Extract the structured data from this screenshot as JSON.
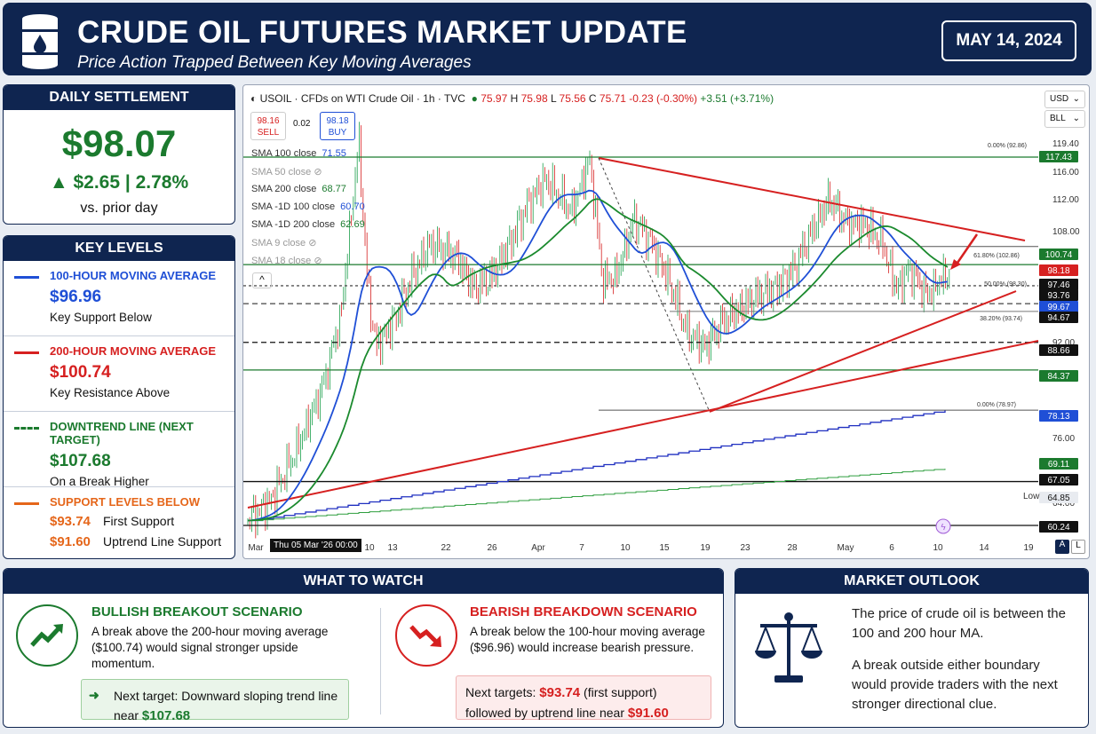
{
  "header": {
    "title": "CRUDE OIL FUTURES MARKET UPDATE",
    "subtitle": "Price Action Trapped Between Key Moving Averages",
    "date": "MAY 14, 2024"
  },
  "settlement": {
    "heading": "DAILY SETTLEMENT",
    "price": "$98.07",
    "change": "▲ $2.65  |  2.78%",
    "note": "vs. prior day"
  },
  "key_levels": {
    "heading": "KEY LEVELS",
    "ma100": {
      "title": "100-HOUR MOVING AVERAGE",
      "value": "$96.96",
      "desc": "Key Support Below",
      "color": "#1f4fd6"
    },
    "ma200": {
      "title": "200-HOUR MOVING AVERAGE",
      "value": "$100.74",
      "desc": "Key Resistance Above",
      "color": "#d62020"
    },
    "downtrend": {
      "title": "DOWNTREND LINE (NEXT TARGET)",
      "value": "$107.68",
      "desc": "On a Break Higher",
      "color": "#1b7a2e"
    },
    "support": {
      "title": "SUPPORT LEVELS BELOW",
      "color": "#e5661a",
      "items": [
        {
          "value": "$93.74",
          "label": "First Support"
        },
        {
          "value": "$91.60",
          "label": "Uptrend Line Support"
        }
      ]
    }
  },
  "chart": {
    "symbol_line": "USOIL · CFDs on WTI Crude Oil · 1h · TVC",
    "ohlc": {
      "o": "75.97",
      "h": "75.98",
      "l": "75.56",
      "c": "75.71",
      "chg": "-0.23 (-0.30%)",
      "extra": "+3.51 (+3.71%)"
    },
    "sell": {
      "price": "98.16",
      "label": "SELL"
    },
    "spread": "0.02",
    "buy": {
      "price": "98.18",
      "label": "BUY"
    },
    "indicators": [
      {
        "name": "SMA 100 close",
        "value": "71.55",
        "color": "#1f4fd6",
        "dim": false
      },
      {
        "name": "SMA 50 close",
        "value": "",
        "color": "",
        "dim": true
      },
      {
        "name": "SMA 200 close",
        "value": "68.77",
        "color": "#1b7a2e",
        "dim": false
      },
      {
        "name": "SMA -1D 100 close",
        "value": "60.70",
        "color": "#1f4fd6",
        "dim": false
      },
      {
        "name": "SMA -1D 200 close",
        "value": "62.69",
        "color": "#1b7a2e",
        "dim": false
      },
      {
        "name": "SMA 9 close",
        "value": "",
        "color": "",
        "dim": true
      },
      {
        "name": "SMA 18 close",
        "value": "",
        "color": "",
        "dim": true
      }
    ],
    "currency": "USD",
    "unit": "BLL",
    "collapse_icon": "^",
    "crosshair_date": "Thu 05 Mar '26  00:00",
    "low_label": "Low",
    "x_ticks": [
      "Mar",
      "10",
      "13",
      "22",
      "26",
      "Apr",
      "7",
      "10",
      "15",
      "19",
      "23",
      "28",
      "May",
      "6",
      "10",
      "14",
      "19"
    ],
    "y_ticks": [
      "119.40",
      "116.00",
      "112.00",
      "108.00",
      "92.00",
      "76.00",
      "64.00"
    ],
    "fib_labels": [
      "0.00% (92.86)",
      "61.80% (102.86)",
      "50.00% (98.30)",
      "38.20% (93.74)",
      "0.00% (78.97)"
    ],
    "price_tags": [
      {
        "text": "117.43",
        "bg": "#1b7a2e",
        "fg": "#ffffff"
      },
      {
        "text": "100.74",
        "bg": "#1b7a2e",
        "fg": "#ffffff"
      },
      {
        "text": "98.18",
        "bg": "#d62020",
        "fg": "#ffffff"
      },
      {
        "text": "97.46",
        "bg": "#111111",
        "fg": "#ffffff"
      },
      {
        "text": "93.76",
        "bg": "#111111",
        "fg": "#ffffff"
      },
      {
        "text": "99.67",
        "bg": "#1f4fd6",
        "fg": "#ffffff"
      },
      {
        "text": "94.67",
        "bg": "#111111",
        "fg": "#ffffff"
      },
      {
        "text": "88.66",
        "bg": "#111111",
        "fg": "#ffffff"
      },
      {
        "text": "84.37",
        "bg": "#1b7a2e",
        "fg": "#ffffff"
      },
      {
        "text": "78.13",
        "bg": "#1f4fd6",
        "fg": "#ffffff"
      },
      {
        "text": "69.11",
        "bg": "#1b7a2e",
        "fg": "#ffffff"
      },
      {
        "text": "67.05",
        "bg": "#111111",
        "fg": "#ffffff"
      },
      {
        "text": "64.85",
        "bg": "#e8ebf0",
        "fg": "#111111"
      },
      {
        "text": "60.24",
        "bg": "#111111",
        "fg": "#ffffff"
      }
    ],
    "log_btn": "A",
    "auto_btn": "L"
  },
  "what_to_watch": {
    "heading": "WHAT TO WATCH",
    "bullish": {
      "title": "BULLISH BREAKOUT SCENARIO",
      "text": "A break above the 200-hour moving average ($100.74) would signal stronger upside momentum.",
      "note_prefix": "Next target: Downward sloping trend line near ",
      "note_value": "$107.68"
    },
    "bearish": {
      "title": "BEARISH BREAKDOWN SCENARIO",
      "text": "A break below the 100-hour moving average ($96.96) would increase bearish pressure.",
      "note_prefix": "Next targets: ",
      "note_value1": "$93.74",
      "note_mid": " (first support) followed by uptrend line near ",
      "note_value2": "$91.60"
    }
  },
  "outlook": {
    "heading": "MARKET OUTLOOK",
    "p1": "The price of crude oil is between the 100 and 200 hour MA.",
    "p2": "A break outside either boundary would provide traders with the next stronger directional clue."
  }
}
